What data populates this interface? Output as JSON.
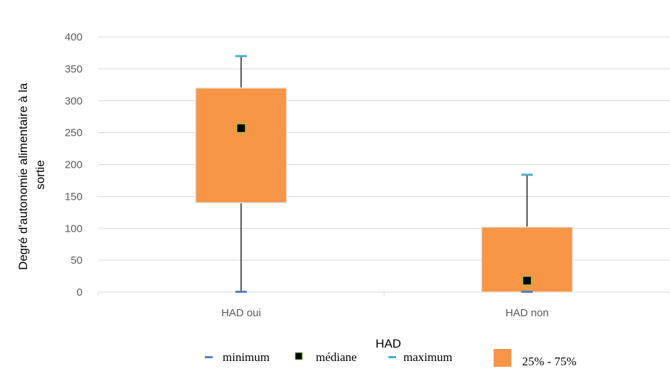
{
  "chart_data": {
    "type": "box",
    "categories": [
      "HAD oui",
      "HAD non"
    ],
    "series": [
      {
        "name": "minimum",
        "values": [
          0,
          0
        ]
      },
      {
        "name": "25%",
        "values": [
          140,
          0
        ]
      },
      {
        "name": "médiane",
        "values": [
          257,
          18
        ]
      },
      {
        "name": "75%",
        "values": [
          320,
          102
        ]
      },
      {
        "name": "maximum",
        "values": [
          370,
          184
        ]
      }
    ],
    "xlabel": "HAD",
    "ylabel_lines": [
      "Degré d'autonomie alimentaire à la",
      "sortie"
    ],
    "ylim": [
      0,
      400
    ],
    "yticks": [
      0,
      50,
      100,
      150,
      200,
      250,
      300,
      350,
      400
    ],
    "grid": true,
    "legend": {
      "position": "bottom",
      "entries": [
        "minimum",
        "médiane",
        "maximum",
        "25% - 75%"
      ]
    },
    "colors": {
      "box": "#f79646",
      "box_border": "#e6e6e6",
      "median": "#000000",
      "median_border": "#92d050",
      "min_marker": "#4f81bd",
      "max_marker": "#4bacc6",
      "whisker": "#000000",
      "grid": "#d9d9d9"
    }
  }
}
